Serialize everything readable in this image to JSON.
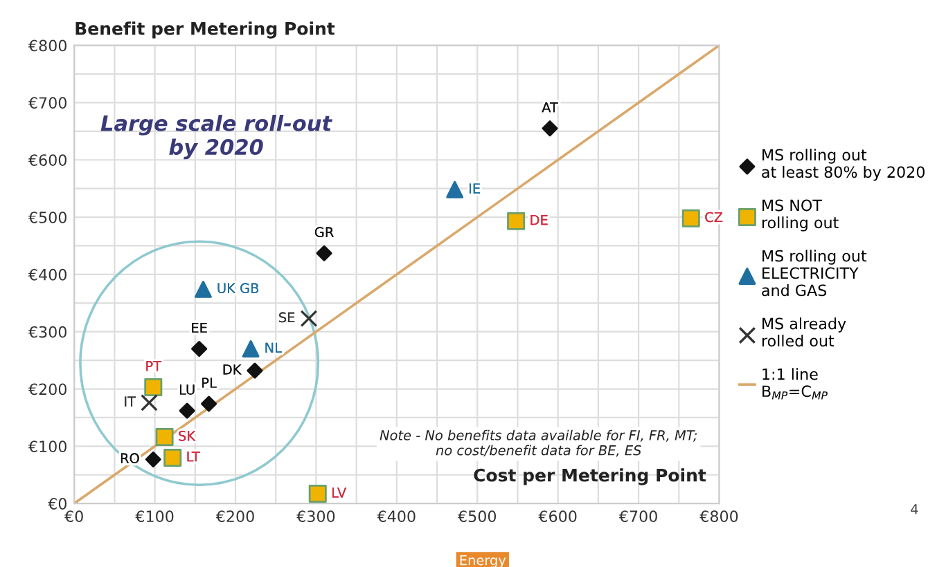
{
  "chart_data": {
    "type": "scatter",
    "ylabel": "Benefit per Metering Point",
    "xlabel": "Cost per Metering Point",
    "xlim": [
      0,
      800
    ],
    "ylim": [
      0,
      800
    ],
    "xticks": [
      {
        "value": 0,
        "label": "€0"
      },
      {
        "value": 50,
        "label": null
      },
      {
        "value": 100,
        "label": "€100"
      },
      {
        "value": 150,
        "label": null
      },
      {
        "value": 200,
        "label": "€200"
      },
      {
        "value": 250,
        "label": null
      },
      {
        "value": 300,
        "label": "€300"
      },
      {
        "value": 350,
        "label": null
      },
      {
        "value": 400,
        "label": "€400"
      },
      {
        "value": 450,
        "label": null
      },
      {
        "value": 500,
        "label": "€500"
      },
      {
        "value": 550,
        "label": null
      },
      {
        "value": 600,
        "label": "€600"
      },
      {
        "value": 650,
        "label": null
      },
      {
        "value": 700,
        "label": "€700"
      },
      {
        "value": 750,
        "label": null
      },
      {
        "value": 800,
        "label": "€800"
      }
    ],
    "yticks": [
      {
        "value": 0,
        "label": "€0"
      },
      {
        "value": 50,
        "label": null
      },
      {
        "value": 100,
        "label": "€100"
      },
      {
        "value": 150,
        "label": null
      },
      {
        "value": 200,
        "label": "€200"
      },
      {
        "value": 250,
        "label": null
      },
      {
        "value": 300,
        "label": "€300"
      },
      {
        "value": 350,
        "label": null
      },
      {
        "value": 400,
        "label": "€400"
      },
      {
        "value": 450,
        "label": null
      },
      {
        "value": 500,
        "label": "€500"
      },
      {
        "value": 550,
        "label": null
      },
      {
        "value": 600,
        "label": "€600"
      },
      {
        "value": 650,
        "label": null
      },
      {
        "value": 700,
        "label": "€700"
      },
      {
        "value": 750,
        "label": null
      },
      {
        "value": 800,
        "label": "€800"
      }
    ],
    "grid": true,
    "legend": "right",
    "series": [
      {
        "name": "MS rolling out\nat least 80% by 2020",
        "marker": "diamond",
        "color": "#111111",
        "x": [
          590,
          310,
          155,
          224,
          167,
          140,
          98
        ],
        "values": [
          655,
          437,
          270,
          232,
          174,
          162,
          77
        ]
      },
      {
        "name": "MS NOT\nrolling out",
        "marker": "square",
        "color": "#f0b400",
        "x": [
          548,
          765,
          98,
          112,
          122,
          302
        ],
        "values": [
          493,
          498,
          203,
          116,
          80,
          17
        ]
      },
      {
        "name": "MS rolling out\nELECTRICITY\nand GAS",
        "marker": "triangle",
        "color": "#1f6fa0",
        "x": [
          472,
          160,
          219
        ],
        "values": [
          548,
          374,
          270
        ]
      },
      {
        "name": "MS already\nrolled out",
        "marker": "cross",
        "color": "#333333",
        "x": [
          291,
          93
        ],
        "values": [
          323,
          176
        ]
      },
      {
        "name": "1:1 line\nB$_{MP}$=C$_{MP}$",
        "type": "line",
        "marker": "none",
        "color": "#d9a86a",
        "x": [
          0,
          800
        ],
        "values": [
          0,
          800
        ]
      }
    ],
    "annotations": [
      {
        "text": "AT",
        "x": 590,
        "y": 655
      },
      {
        "text": "GR",
        "x": 310,
        "y": 437
      },
      {
        "text": "EE",
        "x": 155,
        "y": 270
      },
      {
        "text": "DK",
        "x": 224,
        "y": 232
      },
      {
        "text": "PL",
        "x": 167,
        "y": 174
      },
      {
        "text": "LU",
        "x": 140,
        "y": 162
      },
      {
        "text": "RO",
        "x": 98,
        "y": 77
      },
      {
        "text": "DE",
        "x": 548,
        "y": 493
      },
      {
        "text": "CZ",
        "x": 765,
        "y": 498
      },
      {
        "text": "PT",
        "x": 98,
        "y": 203
      },
      {
        "text": "SK",
        "x": 112,
        "y": 116
      },
      {
        "text": "LT",
        "x": 122,
        "y": 80
      },
      {
        "text": "LV",
        "x": 302,
        "y": 17
      },
      {
        "text": "IE",
        "x": 472,
        "y": 548
      },
      {
        "text": "UK GB",
        "x": 160,
        "y": 374
      },
      {
        "text": "NL",
        "x": 219,
        "y": 270
      },
      {
        "text": "SE",
        "x": 291,
        "y": 323
      },
      {
        "text": "IT",
        "x": 93,
        "y": 176
      },
      "Large scale roll-out\nby 2020",
      "Note - No benefits data available for FI, FR, MT;\nno cost/benefit data for BE, ES",
      "Energy",
      "4"
    ]
  }
}
